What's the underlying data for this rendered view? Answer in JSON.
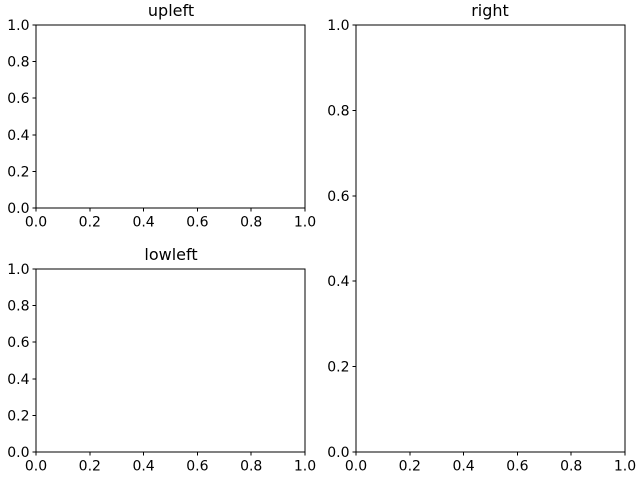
{
  "chart_data": [
    {
      "type": "line",
      "title": "upleft",
      "xlabel": "",
      "ylabel": "",
      "xlim": [
        0,
        1
      ],
      "ylim": [
        0,
        1
      ],
      "x_ticks": [
        "0.0",
        "0.2",
        "0.4",
        "0.6",
        "0.8",
        "1.0"
      ],
      "y_ticks": [
        "0.0",
        "0.2",
        "0.4",
        "0.6",
        "0.8",
        "1.0"
      ],
      "series": [],
      "grid": false
    },
    {
      "type": "line",
      "title": "lowleft",
      "xlabel": "",
      "ylabel": "",
      "xlim": [
        0,
        1
      ],
      "ylim": [
        0,
        1
      ],
      "x_ticks": [
        "0.0",
        "0.2",
        "0.4",
        "0.6",
        "0.8",
        "1.0"
      ],
      "y_ticks": [
        "0.0",
        "0.2",
        "0.4",
        "0.6",
        "0.8",
        "1.0"
      ],
      "series": [],
      "grid": false
    },
    {
      "type": "line",
      "title": "right",
      "xlabel": "",
      "ylabel": "",
      "xlim": [
        0,
        1
      ],
      "ylim": [
        0,
        1
      ],
      "x_ticks": [
        "0.0",
        "0.2",
        "0.4",
        "0.6",
        "0.8",
        "1.0"
      ],
      "y_ticks": [
        "0.0",
        "0.2",
        "0.4",
        "0.6",
        "0.8",
        "1.0"
      ],
      "series": [],
      "grid": false
    }
  ]
}
